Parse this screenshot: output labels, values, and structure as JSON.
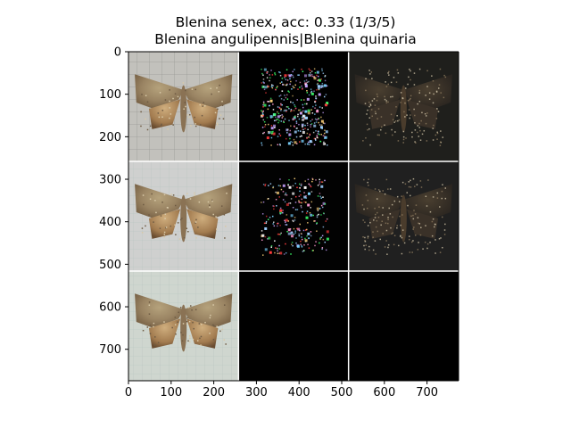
{
  "figure": {
    "title_line1": "Blenina senex, acc: 0.33 (1/3/5)",
    "title_line2": "Blenina angulipennis|Blenina quinaria",
    "background": "#ffffff"
  },
  "chart_data": {
    "type": "image-grid",
    "grid": {
      "rows": 3,
      "cols": 3
    },
    "xlim": [
      0,
      774
    ],
    "ylim": [
      774,
      0
    ],
    "xticks": [
      0,
      100,
      200,
      300,
      400,
      500,
      600,
      700
    ],
    "yticks": [
      0,
      100,
      200,
      300,
      400,
      500,
      600,
      700
    ],
    "separator_color": "#ffffff",
    "panels": [
      {
        "row": 0,
        "col": 0,
        "content": "moth-photo",
        "bg": "#c2c1bc"
      },
      {
        "row": 0,
        "col": 1,
        "content": "saliency-color",
        "bg": "#000000"
      },
      {
        "row": 0,
        "col": 2,
        "content": "masked-photo",
        "bg": "#1f1f1c"
      },
      {
        "row": 1,
        "col": 0,
        "content": "moth-photo",
        "bg": "#cfd0cf"
      },
      {
        "row": 1,
        "col": 1,
        "content": "saliency-color",
        "bg": "#020202"
      },
      {
        "row": 1,
        "col": 2,
        "content": "masked-photo",
        "bg": "#202020"
      },
      {
        "row": 2,
        "col": 0,
        "content": "moth-photo",
        "bg": "#cfd6cf"
      },
      {
        "row": 2,
        "col": 1,
        "content": "empty",
        "bg": "#000000"
      },
      {
        "row": 2,
        "col": 2,
        "content": "empty",
        "bg": "#000000"
      }
    ]
  }
}
